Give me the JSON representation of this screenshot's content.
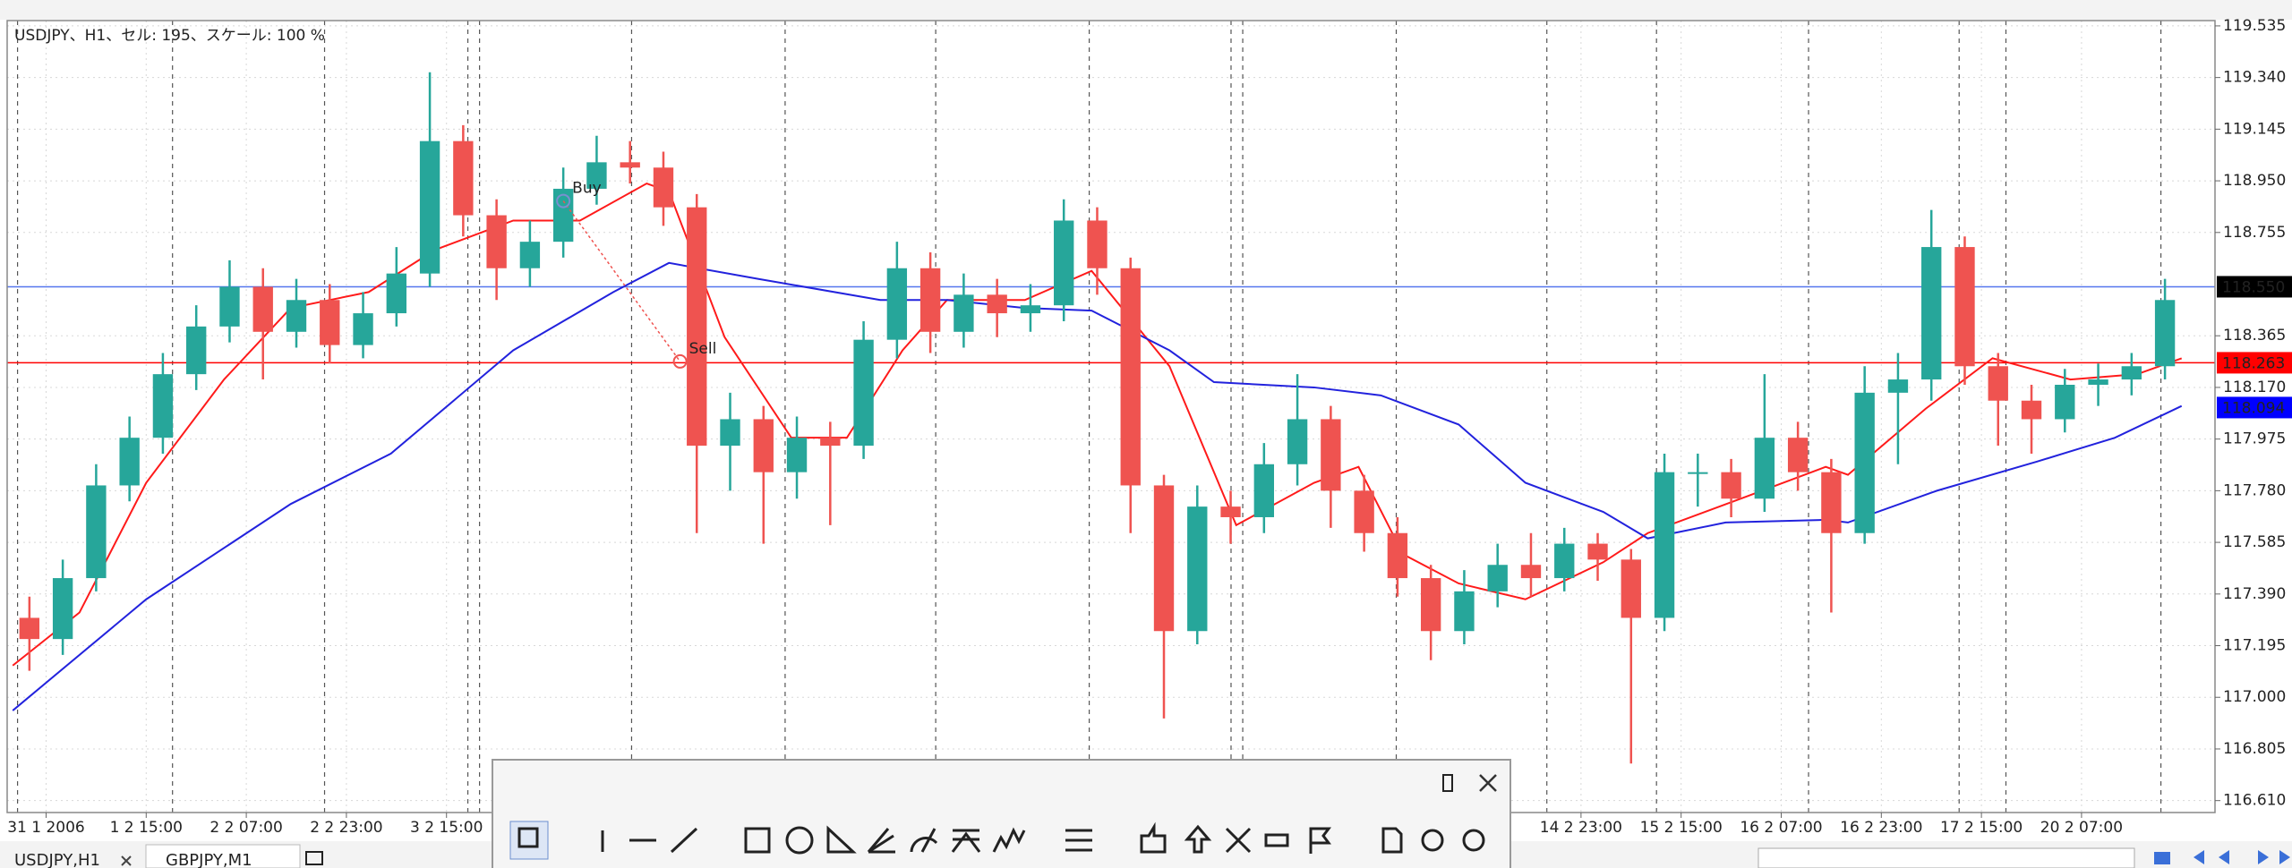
{
  "info": "USDJPY、H1、セル: 195、スケール: 100 %",
  "chart_data": {
    "type": "candlestick",
    "x": [
      1.5,
      4.5,
      7.5,
      10.5,
      13.5,
      16.5,
      19.5,
      22.5,
      25.5,
      28.5,
      31.5,
      34.5,
      37.5,
      40.5,
      43.5,
      46.5,
      49.5,
      52.5,
      55.5,
      58.5,
      61.5,
      64.5,
      67.5,
      70.5,
      73.5,
      76.5,
      79.5,
      82.5,
      85.5,
      88.5,
      91.5,
      94.5,
      97.5,
      100.5,
      103.5,
      106.5,
      109.5,
      112.5,
      115.5,
      118.5,
      121.5,
      124.5,
      127.5,
      130.5,
      133.5,
      136.5,
      139.5,
      142.5,
      145.5,
      148.5,
      151.5,
      154.5,
      157.5,
      160.5,
      163.5,
      166.5,
      169.5,
      172.5,
      175.5,
      178.5,
      181.5,
      184.5,
      187.5,
      190.5,
      193.5
    ],
    "open": [
      117.3,
      117.22,
      117.45,
      117.8,
      117.98,
      118.22,
      118.4,
      118.55,
      118.38,
      118.5,
      118.33,
      118.45,
      118.6,
      119.1,
      118.82,
      118.62,
      118.72,
      118.92,
      119.02,
      119.0,
      118.85,
      117.95,
      118.05,
      117.85,
      117.98,
      117.95,
      118.35,
      118.62,
      118.38,
      118.52,
      118.45,
      118.48,
      118.8,
      118.62,
      117.8,
      117.25,
      117.72,
      117.68,
      117.88,
      118.05,
      117.78,
      117.62,
      117.45,
      117.25,
      117.4,
      117.5,
      117.45,
      117.58,
      117.52,
      117.3,
      117.85,
      117.85,
      117.75,
      117.98,
      117.85,
      117.62,
      118.15,
      118.2,
      118.7,
      118.25,
      118.12,
      118.05,
      118.18,
      118.2,
      118.25
    ],
    "high": [
      117.38,
      117.52,
      117.88,
      118.06,
      118.3,
      118.48,
      118.65,
      118.62,
      118.58,
      118.56,
      118.53,
      118.7,
      119.36,
      119.16,
      118.88,
      118.8,
      119.0,
      119.12,
      119.1,
      119.06,
      118.9,
      118.15,
      118.1,
      118.06,
      118.04,
      118.42,
      118.72,
      118.68,
      118.6,
      118.58,
      118.56,
      118.88,
      118.85,
      118.66,
      117.84,
      117.8,
      117.78,
      117.96,
      118.22,
      118.1,
      117.84,
      117.68,
      117.5,
      117.48,
      117.58,
      117.62,
      117.64,
      117.62,
      117.56,
      117.92,
      117.92,
      117.9,
      118.22,
      118.04,
      117.9,
      118.25,
      118.3,
      118.84,
      118.74,
      118.3,
      118.18,
      118.24,
      118.26,
      118.3,
      118.58
    ],
    "low": [
      117.1,
      117.16,
      117.4,
      117.74,
      117.92,
      118.16,
      118.34,
      118.2,
      118.32,
      118.26,
      118.28,
      118.4,
      118.55,
      118.74,
      118.5,
      118.55,
      118.66,
      118.86,
      118.94,
      118.78,
      117.62,
      117.78,
      117.58,
      117.75,
      117.65,
      117.9,
      118.28,
      118.3,
      118.32,
      118.36,
      118.38,
      118.42,
      118.52,
      117.62,
      116.92,
      117.2,
      117.58,
      117.62,
      117.8,
      117.64,
      117.55,
      117.38,
      117.14,
      117.2,
      117.34,
      117.38,
      117.4,
      117.44,
      116.75,
      117.25,
      117.72,
      117.68,
      117.7,
      117.78,
      117.32,
      117.58,
      117.88,
      118.12,
      118.18,
      117.95,
      117.92,
      118.0,
      118.1,
      118.14,
      118.2
    ],
    "close": [
      117.22,
      117.45,
      117.8,
      117.98,
      118.22,
      118.4,
      118.55,
      118.38,
      118.5,
      118.33,
      118.45,
      118.6,
      119.1,
      118.82,
      118.62,
      118.72,
      118.92,
      119.02,
      119.0,
      118.85,
      117.95,
      118.05,
      117.85,
      117.98,
      117.95,
      118.35,
      118.62,
      118.38,
      118.52,
      118.45,
      118.48,
      118.8,
      118.62,
      117.8,
      117.25,
      117.72,
      117.68,
      117.88,
      118.05,
      117.78,
      117.62,
      117.45,
      117.25,
      117.4,
      117.5,
      117.45,
      117.58,
      117.52,
      117.3,
      117.85,
      117.85,
      117.75,
      117.98,
      117.85,
      117.62,
      118.15,
      118.2,
      118.7,
      118.25,
      118.12,
      118.05,
      118.18,
      118.2,
      118.25,
      118.5
    ],
    "up_color": "#26a69a",
    "down_color": "#ef5350",
    "series": [
      {
        "color": "#ff1a1a",
        "x": [
          0,
          6,
          12,
          19,
          25,
          32,
          38,
          45,
          51,
          57,
          59,
          64,
          70,
          75,
          80,
          84,
          91,
          97,
          104,
          110,
          117,
          121,
          125,
          130,
          136,
          143,
          147,
          156,
          163,
          165,
          172,
          178,
          185,
          191,
          195
        ],
        "values": [
          117.12,
          117.32,
          117.81,
          118.2,
          118.47,
          118.53,
          118.69,
          118.8,
          118.8,
          118.94,
          118.91,
          118.36,
          117.98,
          117.98,
          118.31,
          118.5,
          118.5,
          118.61,
          118.25,
          117.65,
          117.81,
          117.87,
          117.54,
          117.43,
          117.37,
          117.51,
          117.62,
          117.76,
          117.87,
          117.84,
          118.09,
          118.28,
          118.2,
          118.22,
          118.28
        ]
      },
      {
        "color": "#2222dd",
        "x": [
          0,
          12,
          25,
          34,
          45,
          54,
          59,
          67,
          78,
          84,
          91,
          97,
          104,
          108,
          117,
          123,
          130,
          136,
          143,
          147,
          154,
          163,
          165,
          173,
          182,
          189,
          195
        ],
        "values": [
          116.95,
          117.37,
          117.73,
          117.92,
          118.31,
          118.53,
          118.64,
          118.58,
          118.5,
          118.5,
          118.47,
          118.46,
          118.31,
          118.19,
          118.17,
          118.14,
          118.03,
          117.81,
          117.7,
          117.6,
          117.66,
          117.67,
          117.66,
          117.78,
          117.89,
          117.98,
          118.1
        ]
      }
    ],
    "price_lines": [
      {
        "value": 118.55,
        "label": "118.550",
        "color": "#5577ee",
        "box": "#000000",
        "line": true
      },
      {
        "value": 118.263,
        "label": "118.263",
        "color": "#ff0000",
        "box": "#ff0000",
        "line": true
      },
      {
        "value": 118.094,
        "label": "118.094",
        "color": "#0000ff",
        "box": "#0000ff",
        "line": false
      }
    ],
    "trades": [
      {
        "label": "Buy",
        "x": 49.5,
        "price": 118.874,
        "color": "#7a8fd0"
      },
      {
        "label": "Sell",
        "x": 60,
        "price": 118.268,
        "color": "#ef5350"
      }
    ],
    "xlim": [
      -0.5,
      198
    ],
    "ylim": [
      116.565,
      119.555
    ],
    "xticks": [
      {
        "value": 3,
        "label": "31 1 2006"
      },
      {
        "value": 12,
        "label": "1 2 15:00"
      },
      {
        "value": 21,
        "label": "2 2 07:00"
      },
      {
        "value": 30,
        "label": "2 2 23:00"
      },
      {
        "value": 39,
        "label": "3 2 15:00"
      },
      {
        "value": 141,
        "label": "14 2 23:00"
      },
      {
        "value": 150,
        "label": "15 2 15:00"
      },
      {
        "value": 159,
        "label": "16 2 07:00"
      },
      {
        "value": 168,
        "label": "16 2 23:00"
      },
      {
        "value": 177,
        "label": "17 2 15:00"
      },
      {
        "value": 186,
        "label": "20 2 07:00"
      }
    ],
    "yticks": [
      119.535,
      {
        "value": 119.34,
        "label": "119.340"
      },
      119.145,
      {
        "value": 118.95,
        "label": "118.950"
      },
      118.755,
      118.365,
      {
        "value": 118.17,
        "label": "118.170"
      },
      117.975,
      {
        "value": 117.78,
        "label": "117.780"
      },
      117.585,
      {
        "value": 117.39,
        "label": "117.390"
      },
      117.195,
      {
        "value": 117,
        "label": "117.000"
      },
      116.805,
      {
        "value": 116.61,
        "label": "116.610"
      }
    ],
    "grid": true
  },
  "tabs": [
    "USDJPY,H1",
    "GBPJPY,M1"
  ]
}
